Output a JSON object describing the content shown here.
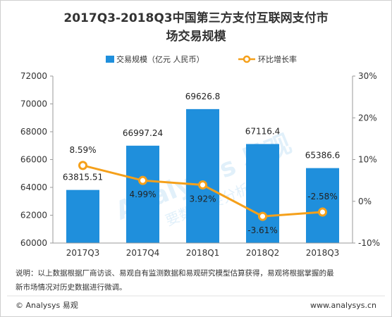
{
  "chart_data": {
    "type": "bar",
    "title_line1": "2017Q3-2018Q3中国第三方支付互联网支付市",
    "title_line2": "场交易规模",
    "categories": [
      "2017Q3",
      "2017Q4",
      "2018Q1",
      "2018Q2",
      "2018Q3"
    ],
    "series": [
      {
        "name": "交易规模（亿元 人民币）",
        "type": "bar",
        "axis": "left",
        "color": "#1f8fdc",
        "values": [
          63815.51,
          66997.24,
          69626.8,
          67116.4,
          65386.6
        ],
        "labels": [
          "63815.51",
          "66997.24",
          "69626.8",
          "67116.4",
          "65386.6"
        ]
      },
      {
        "name": "环比增长率",
        "type": "line",
        "axis": "right",
        "color": "#f5a01a",
        "values": [
          8.59,
          4.99,
          3.92,
          -3.61,
          -2.58
        ],
        "labels": [
          "8.59%",
          "4.99%",
          "3.92%",
          "-3.61%",
          "-2.58%"
        ]
      }
    ],
    "yleft": {
      "ylim": [
        60000,
        72000
      ],
      "ticks": [
        60000,
        62000,
        64000,
        66000,
        68000,
        70000,
        72000
      ],
      "tick_labels": [
        "60000",
        "62000",
        "64000",
        "66000",
        "68000",
        "70000",
        "72000"
      ]
    },
    "yright": {
      "ylim": [
        -10,
        30
      ],
      "ticks": [
        -10,
        0,
        10,
        20,
        30
      ],
      "tick_labels": [
        "-10%",
        "0%",
        "10%",
        "20%",
        "30%"
      ]
    },
    "grid": false,
    "legend_position": "top"
  },
  "note_line1": "说明：以上数据根据厂商访谈、易观自有监测数据和易观研究模型估算获得，易观将根据掌握的最",
  "note_line2": "新市场情况对历史数据进行微调。",
  "footer_left": "© Analysys 易观",
  "footer_right": "www.analysys.cn",
  "watermark_text": "Analysys 易观",
  "watermark_sub": "要数据 要分析"
}
